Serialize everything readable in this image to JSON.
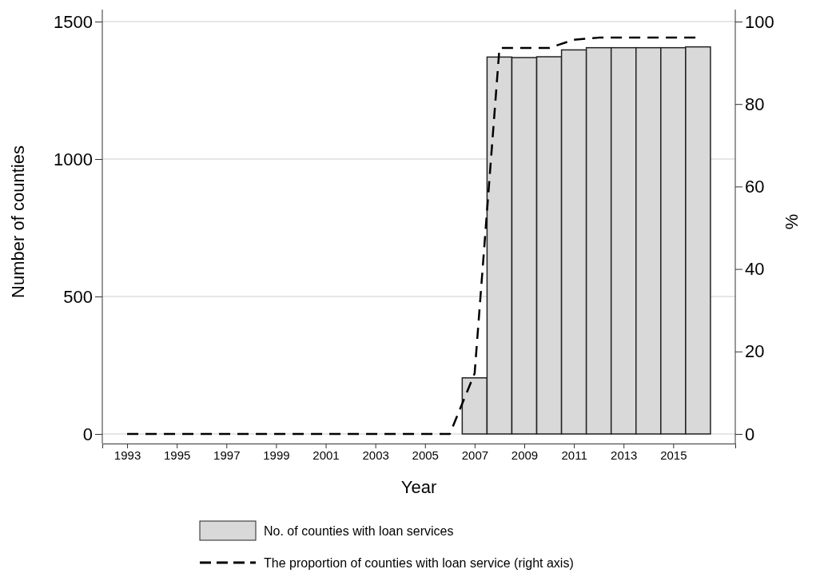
{
  "chart_data": {
    "type": "bar",
    "xlabel": "Year",
    "ylabel": "Number of counties",
    "y2label": "%",
    "xlim": [
      1992,
      2017.5
    ],
    "xticks": [
      1993,
      1995,
      1997,
      1999,
      2001,
      2003,
      2005,
      2007,
      2009,
      2011,
      2013,
      2015
    ],
    "ylim": [
      0,
      1500
    ],
    "yticks": [
      0,
      500,
      1000,
      1500
    ],
    "y2lim": [
      0,
      100
    ],
    "y2ticks": [
      0,
      20,
      40,
      60,
      80,
      100
    ],
    "grid": "y",
    "legend": "bottom",
    "series": [
      {
        "name": "No. of counties with loan services",
        "color": "#d9d9d9",
        "x": [
          2007,
          2008,
          2009,
          2010,
          2011,
          2012,
          2013,
          2014,
          2015,
          2016
        ],
        "values": [
          204,
          1371,
          1369,
          1372,
          1397,
          1405,
          1405,
          1405,
          1405,
          1408
        ]
      },
      {
        "type": "line",
        "name": "The proportion of counties with loan service (right axis)",
        "color": "#000000",
        "axis": "y2",
        "line_style": "dashed",
        "x": [
          1993,
          1994,
          1995,
          1996,
          1997,
          1998,
          1999,
          2000,
          2001,
          2002,
          2003,
          2004,
          2005,
          2006,
          2007,
          2008,
          2009,
          2010,
          2011,
          2012,
          2013,
          2014,
          2015,
          2016
        ],
        "values": [
          0,
          0,
          0,
          0,
          0,
          0,
          0,
          0,
          0,
          0,
          0,
          0,
          0,
          0,
          14.7,
          93.6,
          93.6,
          93.6,
          95.6,
          96.1,
          96.1,
          96.1,
          96.1,
          96.1
        ]
      }
    ]
  }
}
